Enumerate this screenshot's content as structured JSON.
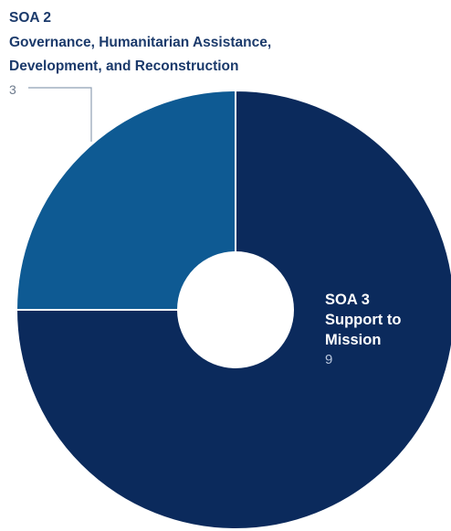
{
  "chart_data": {
    "type": "pie",
    "title": "",
    "slices": [
      {
        "code": "SOA 3",
        "lines": [
          "Support to",
          "Mission"
        ],
        "value": 9,
        "color": "#0b2a5c"
      },
      {
        "code": "SOA 2",
        "lines": [
          "Governance, Humanitarian Assistance,",
          "Development, and Reconstruction"
        ],
        "value": 3,
        "color": "#0e5a93"
      }
    ],
    "donut": true,
    "legend": "none"
  }
}
